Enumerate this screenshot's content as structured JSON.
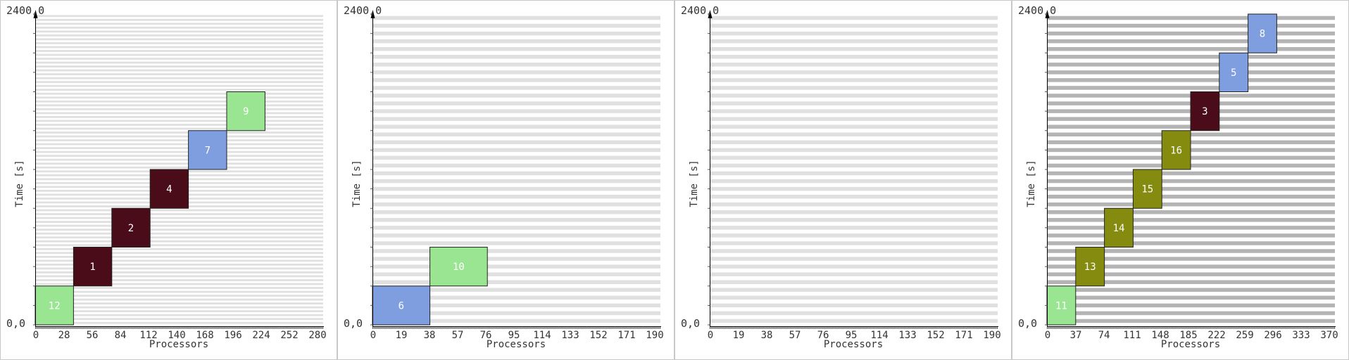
{
  "chart_data": [
    {
      "type": "gantt",
      "x_label": "Processors",
      "y_label": "Time [s]",
      "top_left_label": "2400,0",
      "origin_label": "0,0",
      "x_ticks": [
        "0",
        "28",
        "56",
        "84",
        "112",
        "140",
        "168",
        "196",
        "224",
        "252",
        "280"
      ],
      "x_max": 300,
      "y_max": 2400,
      "grid_rows": 80,
      "grid_color": "#e0e0e0",
      "jobs": [
        {
          "id": "12",
          "x_start": 0,
          "x_end": 40,
          "t_start": 0,
          "t_end": 300,
          "color": "#9ae592"
        },
        {
          "id": "1",
          "x_start": 40,
          "x_end": 80,
          "t_start": 300,
          "t_end": 600,
          "color": "#4a0c19"
        },
        {
          "id": "2",
          "x_start": 80,
          "x_end": 120,
          "t_start": 600,
          "t_end": 900,
          "color": "#4a0c19"
        },
        {
          "id": "4",
          "x_start": 120,
          "x_end": 160,
          "t_start": 900,
          "t_end": 1200,
          "color": "#4a0c19"
        },
        {
          "id": "7",
          "x_start": 160,
          "x_end": 200,
          "t_start": 1200,
          "t_end": 1500,
          "color": "#7e9edf"
        },
        {
          "id": "9",
          "x_start": 200,
          "x_end": 240,
          "t_start": 1500,
          "t_end": 1800,
          "color": "#9ae592"
        }
      ]
    },
    {
      "type": "gantt",
      "x_label": "Processors",
      "y_label": "Time [s]",
      "top_left_label": "2400,0",
      "origin_label": "0,0",
      "x_ticks": [
        "0",
        "19",
        "38",
        "57",
        "76",
        "95",
        "114",
        "133",
        "152",
        "171",
        "190"
      ],
      "x_max": 200,
      "y_max": 2400,
      "grid_rows": 40,
      "grid_color": "#e0e0e0",
      "jobs": [
        {
          "id": "6",
          "x_start": 0,
          "x_end": 40,
          "t_start": 0,
          "t_end": 300,
          "color": "#7e9edf"
        },
        {
          "id": "10",
          "x_start": 40,
          "x_end": 80,
          "t_start": 300,
          "t_end": 600,
          "color": "#9ae592"
        }
      ]
    },
    {
      "type": "gantt",
      "x_label": "Processors",
      "y_label": "Time [s]",
      "top_left_label": "2400,0",
      "origin_label": "0,0",
      "x_ticks": [
        "0",
        "19",
        "38",
        "57",
        "76",
        "95",
        "114",
        "133",
        "152",
        "171",
        "190"
      ],
      "x_max": 200,
      "y_max": 2400,
      "grid_rows": 40,
      "grid_color": "#e0e0e0",
      "jobs": []
    },
    {
      "type": "gantt",
      "x_label": "Processors",
      "y_label": "Time [s]",
      "top_left_label": "2400,0",
      "origin_label": "0,0",
      "x_ticks": [
        "0",
        "37",
        "74",
        "111",
        "148",
        "185",
        "222",
        "259",
        "296",
        "333",
        "370"
      ],
      "x_max": 400,
      "y_max": 2400,
      "grid_rows": 40,
      "grid_color": "#b4b4b4",
      "jobs": [
        {
          "id": "11",
          "x_start": 0,
          "x_end": 40,
          "t_start": 0,
          "t_end": 300,
          "color": "#9ae592"
        },
        {
          "id": "13",
          "x_start": 40,
          "x_end": 80,
          "t_start": 300,
          "t_end": 600,
          "color": "#848b0e"
        },
        {
          "id": "14",
          "x_start": 80,
          "x_end": 120,
          "t_start": 600,
          "t_end": 900,
          "color": "#848b0e"
        },
        {
          "id": "15",
          "x_start": 120,
          "x_end": 160,
          "t_start": 900,
          "t_end": 1200,
          "color": "#848b0e"
        },
        {
          "id": "16",
          "x_start": 160,
          "x_end": 200,
          "t_start": 1200,
          "t_end": 1500,
          "color": "#848b0e"
        },
        {
          "id": "3",
          "x_start": 200,
          "x_end": 240,
          "t_start": 1500,
          "t_end": 1800,
          "color": "#4a0c19"
        },
        {
          "id": "5",
          "x_start": 240,
          "x_end": 280,
          "t_start": 1800,
          "t_end": 2100,
          "color": "#7e9edf"
        },
        {
          "id": "8",
          "x_start": 280,
          "x_end": 320,
          "t_start": 2100,
          "t_end": 2400,
          "color": "#7e9edf"
        }
      ]
    }
  ]
}
